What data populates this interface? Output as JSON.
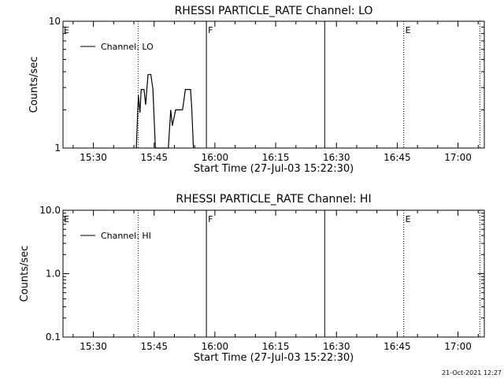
{
  "chart_data": [
    {
      "type": "line",
      "title": "RHESSI PARTICLE_RATE Channel: LO",
      "xlabel": "Start Time (27-Jul-03 15:22:30)",
      "ylabel": "Counts/sec",
      "x_unit": "minutes after 15:22:30",
      "xlim": [
        0,
        104
      ],
      "ylim": [
        1,
        10
      ],
      "yscale": "log",
      "grid": false,
      "legend_position": "top-left",
      "x_ticks": [
        {
          "value": 7.5,
          "label": "15:30"
        },
        {
          "value": 22.5,
          "label": "15:45"
        },
        {
          "value": 37.5,
          "label": "16:00"
        },
        {
          "value": 52.5,
          "label": "16:15"
        },
        {
          "value": 67.5,
          "label": "16:30"
        },
        {
          "value": 82.5,
          "label": "16:45"
        },
        {
          "value": 97.5,
          "label": "17:00"
        }
      ],
      "y_ticks": [
        {
          "value": 1,
          "label": "1"
        },
        {
          "value": 10,
          "label": "10"
        }
      ],
      "markers": [
        {
          "x": 18.6,
          "style": "dotted",
          "label": ""
        },
        {
          "x": 35.4,
          "style": "solid",
          "label": "F"
        },
        {
          "x": 64.6,
          "style": "solid",
          "label": ""
        },
        {
          "x": 84.1,
          "style": "dotted",
          "label": "E"
        },
        {
          "x": 102.9,
          "style": "dotted",
          "label": ""
        }
      ],
      "edge_labels": [
        {
          "x": 0,
          "label": "E"
        }
      ],
      "series": [
        {
          "name": "Channel: LO",
          "points": [
            [
              18.1,
              1.0
            ],
            [
              18.6,
              2.6
            ],
            [
              19.0,
              1.9
            ],
            [
              19.3,
              2.9
            ],
            [
              20.0,
              2.9
            ],
            [
              20.4,
              2.2
            ],
            [
              21.0,
              3.8
            ],
            [
              21.7,
              3.8
            ],
            [
              22.2,
              2.9
            ],
            [
              22.8,
              1.0
            ],
            [
              26.0,
              1.0
            ],
            [
              26.6,
              2.0
            ],
            [
              27.0,
              1.5
            ],
            [
              27.8,
              2.0
            ],
            [
              29.5,
              2.0
            ],
            [
              30.2,
              2.9
            ],
            [
              31.5,
              2.9
            ],
            [
              31.8,
              2.0
            ],
            [
              32.2,
              1.0
            ]
          ]
        }
      ]
    },
    {
      "type": "line",
      "title": "RHESSI PARTICLE_RATE Channel: HI",
      "xlabel": "Start Time (27-Jul-03 15:22:30)",
      "ylabel": "Counts/sec",
      "x_unit": "minutes after 15:22:30",
      "xlim": [
        0,
        104
      ],
      "ylim": [
        0.1,
        10
      ],
      "yscale": "log",
      "grid": false,
      "legend_position": "top-left",
      "x_ticks": [
        {
          "value": 7.5,
          "label": "15:30"
        },
        {
          "value": 22.5,
          "label": "15:45"
        },
        {
          "value": 37.5,
          "label": "16:00"
        },
        {
          "value": 52.5,
          "label": "16:15"
        },
        {
          "value": 67.5,
          "label": "16:30"
        },
        {
          "value": 82.5,
          "label": "16:45"
        },
        {
          "value": 97.5,
          "label": "17:00"
        }
      ],
      "y_ticks": [
        {
          "value": 0.1,
          "label": "0.1"
        },
        {
          "value": 1,
          "label": "1.0"
        },
        {
          "value": 10,
          "label": "10.0"
        }
      ],
      "markers": [
        {
          "x": 18.6,
          "style": "dotted",
          "label": ""
        },
        {
          "x": 35.4,
          "style": "solid",
          "label": "F"
        },
        {
          "x": 64.6,
          "style": "solid",
          "label": ""
        },
        {
          "x": 84.1,
          "style": "dotted",
          "label": "E"
        },
        {
          "x": 102.9,
          "style": "dotted",
          "label": ""
        }
      ],
      "edge_labels": [
        {
          "x": 0,
          "label": "E"
        }
      ],
      "series": [
        {
          "name": "Channel: HI",
          "points": []
        }
      ]
    }
  ],
  "footer": {
    "timestamp": "21-Oct-2021 12:27"
  }
}
